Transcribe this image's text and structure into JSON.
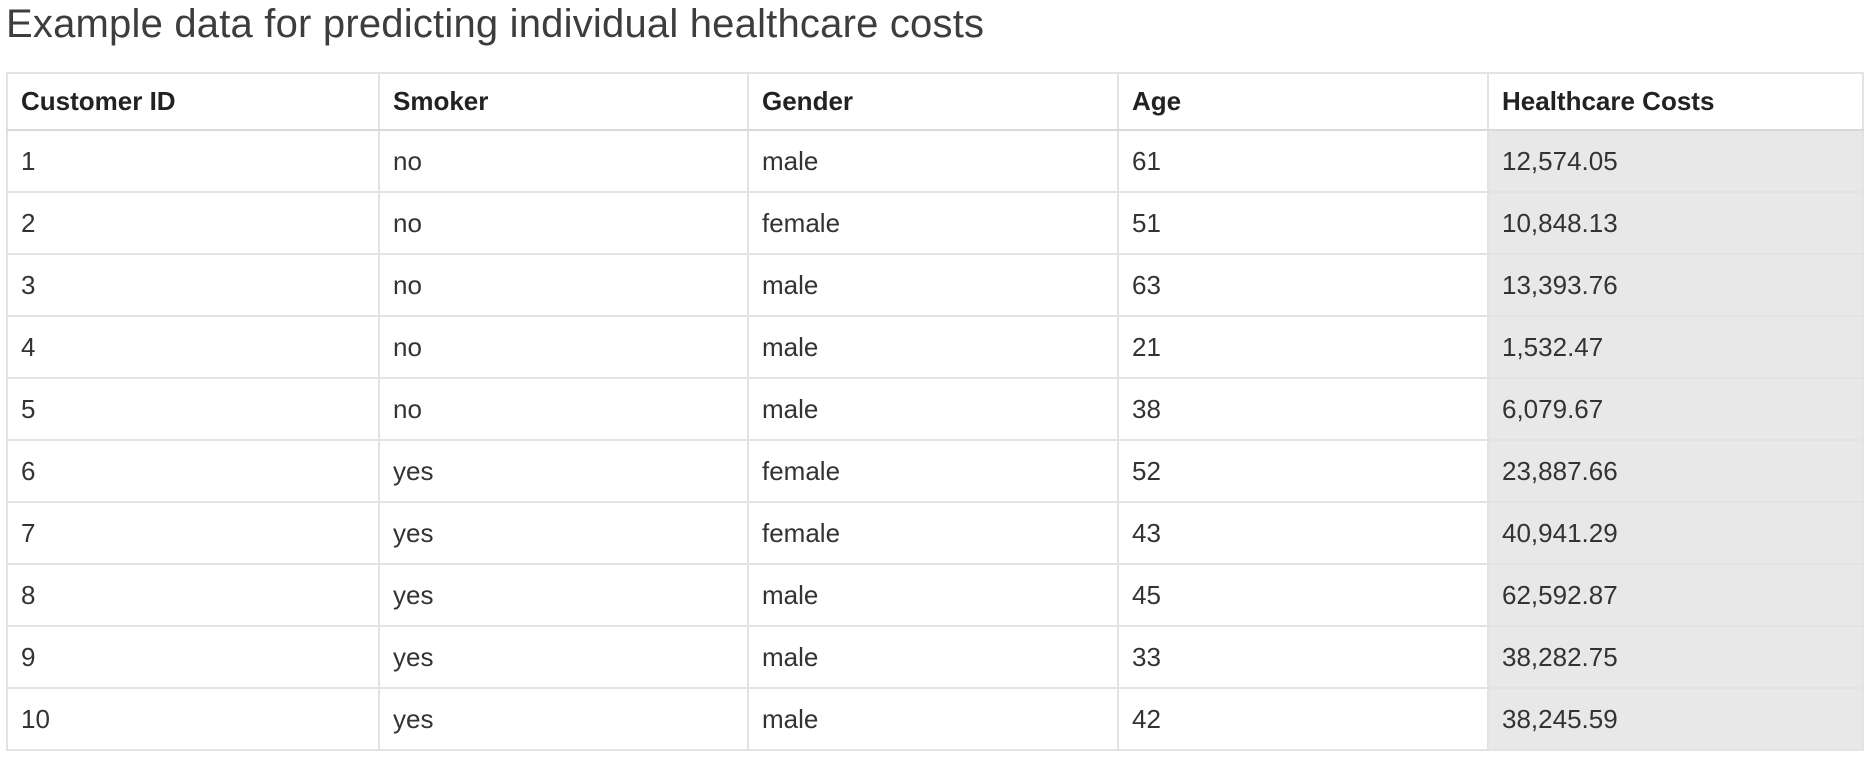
{
  "caption": "Example data for predicting individual healthcare costs",
  "colors": {
    "highlight_column": "#e8e8e8",
    "border": "#e3e3e3",
    "text": "#333333"
  },
  "table": {
    "columns": [
      "Customer ID",
      "Smoker",
      "Gender",
      "Age",
      "Healthcare Costs"
    ],
    "rows": [
      [
        "1",
        "no",
        "male",
        "61",
        "12,574.05"
      ],
      [
        "2",
        "no",
        "female",
        "51",
        "10,848.13"
      ],
      [
        "3",
        "no",
        "male",
        "63",
        "13,393.76"
      ],
      [
        "4",
        "no",
        "male",
        "21",
        "1,532.47"
      ],
      [
        "5",
        "no",
        "male",
        "38",
        "6,079.67"
      ],
      [
        "6",
        "yes",
        "female",
        "52",
        "23,887.66"
      ],
      [
        "7",
        "yes",
        "female",
        "43",
        "40,941.29"
      ],
      [
        "8",
        "yes",
        "male",
        "45",
        "62,592.87"
      ],
      [
        "9",
        "yes",
        "male",
        "33",
        "38,282.75"
      ],
      [
        "10",
        "yes",
        "male",
        "42",
        "38,245.59"
      ]
    ]
  }
}
